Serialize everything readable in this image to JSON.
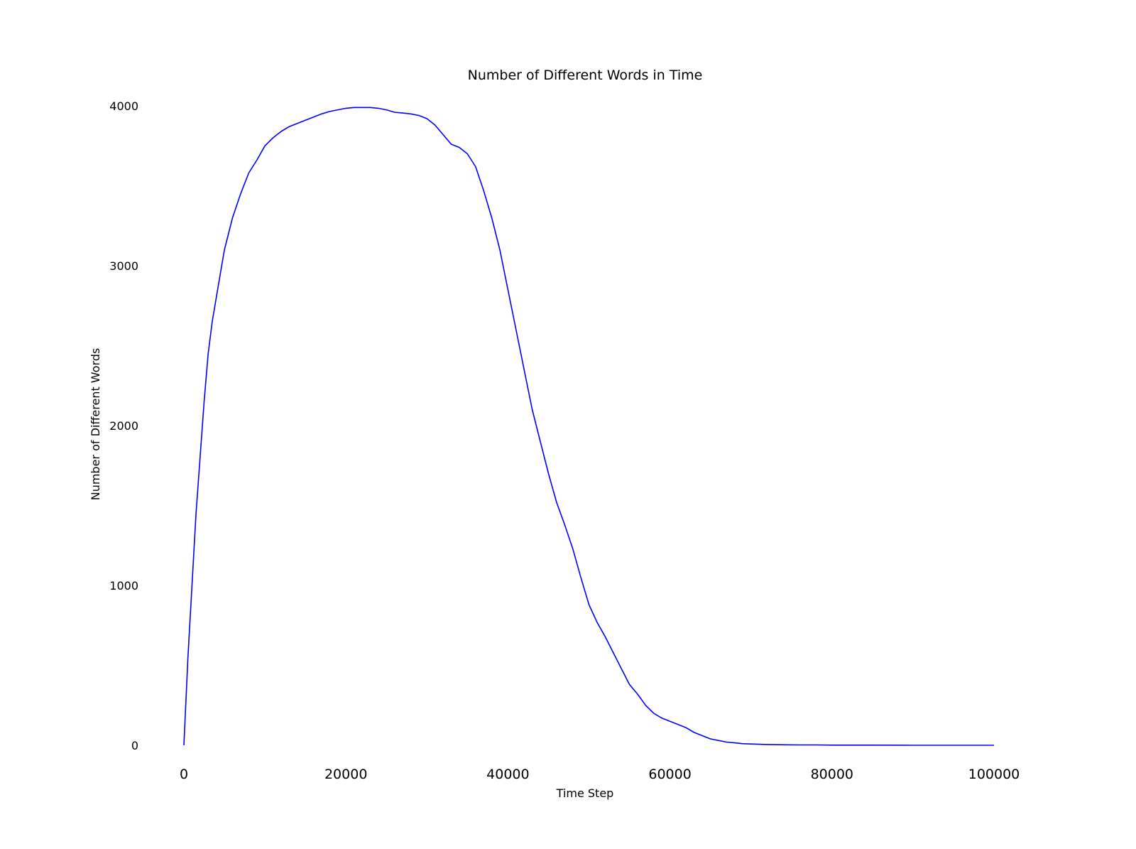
{
  "chart_data": {
    "type": "line",
    "title": "Number of Different Words in Time",
    "xlabel": "Time Step",
    "ylabel": "Number of Different Words",
    "xlim": [
      0,
      100000
    ],
    "ylim": [
      0,
      4000
    ],
    "xticks": [
      0,
      20000,
      40000,
      60000,
      80000,
      100000
    ],
    "xtick_labels": [
      "0",
      "20000",
      "40000",
      "60000",
      "80000",
      "100000"
    ],
    "yticks": [
      0,
      1000,
      2000,
      3000,
      4000
    ],
    "ytick_labels": [
      "0",
      "1000",
      "2000",
      "3000",
      "4000"
    ],
    "grid": false,
    "legend": "none",
    "series": [
      {
        "color": "#0000ff",
        "x": [
          0,
          500,
          1000,
          1500,
          2000,
          2500,
          3000,
          3500,
          4000,
          4500,
          5000,
          6000,
          7000,
          8000,
          9000,
          10000,
          11000,
          12000,
          13000,
          14000,
          15000,
          16000,
          17000,
          18000,
          19000,
          20000,
          21000,
          22000,
          23000,
          24000,
          25000,
          26000,
          27000,
          28000,
          29000,
          30000,
          31000,
          32000,
          33000,
          34000,
          35000,
          36000,
          37000,
          38000,
          39000,
          40000,
          41000,
          42000,
          43000,
          44000,
          45000,
          46000,
          47000,
          48000,
          49000,
          50000,
          51000,
          52000,
          53000,
          54000,
          55000,
          56000,
          57000,
          58000,
          59000,
          60000,
          61000,
          62000,
          63000,
          64000,
          65000,
          66000,
          67000,
          68000,
          69000,
          70000,
          72000,
          74000,
          76000,
          78000,
          80000,
          85000,
          90000,
          95000,
          100000
        ],
        "y": [
          0,
          550,
          1000,
          1450,
          1800,
          2150,
          2450,
          2650,
          2800,
          2950,
          3100,
          3300,
          3450,
          3580,
          3660,
          3750,
          3800,
          3840,
          3870,
          3890,
          3910,
          3930,
          3950,
          3965,
          3975,
          3985,
          3990,
          3990,
          3990,
          3985,
          3975,
          3960,
          3955,
          3950,
          3940,
          3920,
          3880,
          3820,
          3760,
          3740,
          3700,
          3620,
          3470,
          3300,
          3100,
          2850,
          2600,
          2350,
          2100,
          1900,
          1700,
          1520,
          1380,
          1230,
          1050,
          880,
          770,
          680,
          580,
          480,
          380,
          320,
          250,
          200,
          170,
          150,
          130,
          110,
          80,
          60,
          40,
          30,
          20,
          15,
          10,
          8,
          5,
          3,
          2,
          2,
          1,
          1,
          0,
          0,
          0
        ]
      }
    ]
  }
}
